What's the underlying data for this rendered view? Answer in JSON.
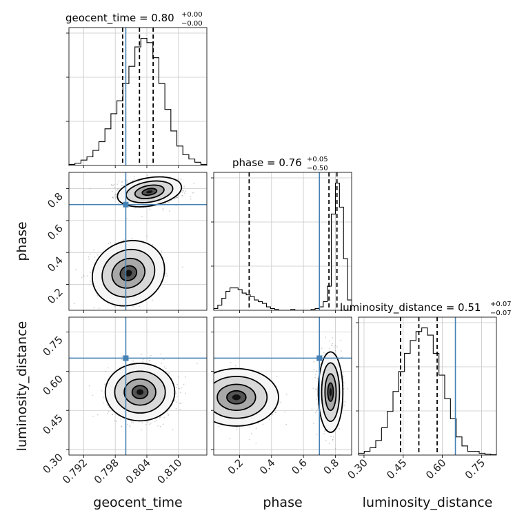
{
  "colors": {
    "truth": "#4682b4",
    "hist": "#000000",
    "density": "#000000"
  },
  "chart_data": {
    "type": "corner",
    "parameters": [
      "geocent_time",
      "phase",
      "luminosity_distance"
    ],
    "truths": {
      "geocent_time": 0.8,
      "phase": 0.7,
      "luminosity_distance": 0.65
    },
    "titles": [
      {
        "param": "geocent_time",
        "text": "geocent_time = 0.80",
        "sup": "+0.00",
        "sub": "−0.00"
      },
      {
        "param": "phase",
        "text": "phase = 0.76",
        "sup": "+0.05",
        "sub": "−0.50"
      },
      {
        "param": "luminosity_distance",
        "text": "luminosity_distance = 0.51",
        "sup": "+0.07",
        "sub": "−0.07"
      }
    ],
    "axes": {
      "geocent_time": {
        "range": [
          0.7892,
          0.8154
        ],
        "ticks": [
          0.792,
          0.798,
          0.804,
          0.81
        ],
        "tick_labels": [
          "0.792",
          "0.798",
          "0.804",
          "0.810"
        ],
        "label": "geocent_time"
      },
      "phase": {
        "range": [
          0.038,
          0.902
        ],
        "ticks": [
          0.2,
          0.4,
          0.6,
          0.8
        ],
        "tick_labels": [
          "0.2",
          "0.4",
          "0.6",
          "0.8"
        ],
        "label": "phase"
      },
      "luminosity_distance": {
        "range": [
          0.279,
          0.807
        ],
        "ticks": [
          0.3,
          0.45,
          0.6,
          0.75
        ],
        "tick_labels": [
          "0.30",
          "0.45",
          "0.60",
          "0.75"
        ],
        "label": "luminosity_distance"
      }
    },
    "histograms": [
      {
        "param": "geocent_time",
        "quantiles": [
          0.7994,
          0.8026,
          0.8052
        ],
        "bins": [
          0.7892,
          0.8154
        ],
        "counts": [
          0.5,
          1,
          2.5,
          4,
          7,
          11,
          17,
          24,
          30,
          38,
          46,
          55,
          59,
          57,
          50,
          38,
          26,
          16,
          9,
          5,
          3,
          1.5,
          0.5
        ]
      },
      {
        "param": "phase",
        "quantiles": [
          0.26,
          0.76,
          0.81
        ],
        "bins": [
          0.038,
          0.902
        ],
        "counts": [
          1,
          3,
          7,
          11,
          13,
          13,
          12,
          10,
          9,
          8,
          6,
          5,
          4,
          2,
          1,
          0.5,
          0,
          0,
          0,
          0.5,
          0,
          0,
          0,
          0,
          0.5,
          1,
          2,
          5,
          14,
          56,
          74,
          60,
          30,
          6
        ]
      },
      {
        "param": "luminosity_distance",
        "quantiles": [
          0.44,
          0.51,
          0.58
        ],
        "bins": [
          0.279,
          0.807
        ],
        "counts": [
          1,
          2,
          4,
          8,
          15,
          24,
          35,
          46,
          56,
          63,
          68,
          70,
          66,
          56,
          44,
          31,
          20,
          10,
          5,
          2,
          2,
          1,
          0.5,
          0.2
        ]
      }
    ],
    "density_panels": [
      {
        "x": "geocent_time",
        "y": "phase"
      },
      {
        "x": "geocent_time",
        "y": "luminosity_distance"
      },
      {
        "x": "phase",
        "y": "luminosity_distance"
      }
    ]
  }
}
